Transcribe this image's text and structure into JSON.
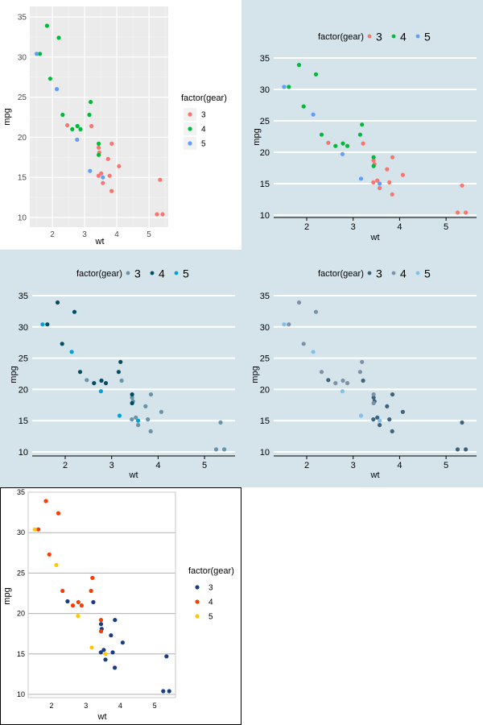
{
  "chart_data": [
    {
      "type": "scatter",
      "theme": "ggplot-gray",
      "xlabel": "wt",
      "ylabel": "mpg",
      "legend_title": "factor(gear)",
      "legend_placement": "right",
      "xticks": [
        2,
        3,
        4,
        5
      ],
      "yticks": [
        10,
        15,
        20,
        25,
        30,
        35
      ],
      "grid": true,
      "colors": {
        "3": "#f8766d",
        "4": "#00ba38",
        "5": "#619cff"
      }
    },
    {
      "type": "scatter",
      "theme": "economist",
      "xlabel": "wt",
      "ylabel": "mpg",
      "legend_title": "factor(gear)",
      "legend_placement": "top",
      "xticks": [
        2,
        3,
        4,
        5
      ],
      "yticks": [
        10,
        15,
        20,
        25,
        30,
        35
      ],
      "grid": true,
      "colors": {
        "3": "#f8766d",
        "4": "#00ba38",
        "5": "#619cff"
      }
    },
    {
      "type": "scatter",
      "theme": "economist",
      "xlabel": "wt",
      "ylabel": "mpg",
      "legend_title": "factor(gear)",
      "legend_placement": "top",
      "xticks": [
        2,
        3,
        4,
        5
      ],
      "yticks": [
        10,
        15,
        20,
        25,
        30,
        35
      ],
      "grid": true,
      "colors": {
        "3": "#6794a7",
        "4": "#014d64",
        "5": "#01a2d9"
      }
    },
    {
      "type": "scatter",
      "theme": "economist",
      "xlabel": "wt",
      "ylabel": "mpg",
      "legend_title": "factor(gear)",
      "legend_placement": "top",
      "xticks": [
        2,
        3,
        4,
        5
      ],
      "yticks": [
        10,
        15,
        20,
        25,
        30,
        35
      ],
      "grid": true,
      "colors": {
        "3": "#3e647d",
        "4": "#7b92a8",
        "5": "#82c0e9"
      }
    },
    {
      "type": "scatter",
      "theme": "stata",
      "xlabel": "wt",
      "ylabel": "mpg",
      "legend_title": "factor(gear)",
      "legend_placement": "right",
      "xticks": [
        2,
        3,
        4,
        5
      ],
      "yticks": [
        10,
        15,
        20,
        25,
        30,
        35
      ],
      "grid": true,
      "colors": {
        "3": "#1a3c80",
        "4": "#ff3c00",
        "5": "#ffc800"
      }
    }
  ],
  "points": [
    [
      2.62,
      21.0,
      4
    ],
    [
      2.875,
      21.0,
      4
    ],
    [
      2.32,
      22.8,
      4
    ],
    [
      3.215,
      21.4,
      3
    ],
    [
      3.44,
      18.7,
      3
    ],
    [
      3.46,
      18.1,
      3
    ],
    [
      3.57,
      14.3,
      3
    ],
    [
      3.19,
      24.4,
      4
    ],
    [
      3.15,
      22.8,
      4
    ],
    [
      3.44,
      19.2,
      4
    ],
    [
      3.44,
      17.8,
      4
    ],
    [
      4.07,
      16.4,
      3
    ],
    [
      3.73,
      17.3,
      3
    ],
    [
      3.78,
      15.2,
      3
    ],
    [
      5.25,
      10.4,
      3
    ],
    [
      5.424,
      10.4,
      3
    ],
    [
      5.345,
      14.7,
      3
    ],
    [
      2.2,
      32.4,
      4
    ],
    [
      1.615,
      30.4,
      4
    ],
    [
      1.835,
      33.9,
      4
    ],
    [
      2.465,
      21.5,
      3
    ],
    [
      3.52,
      15.5,
      3
    ],
    [
      3.435,
      15.2,
      3
    ],
    [
      3.84,
      13.3,
      3
    ],
    [
      3.845,
      19.2,
      3
    ],
    [
      1.935,
      27.3,
      4
    ],
    [
      2.14,
      26.0,
      5
    ],
    [
      1.513,
      30.4,
      5
    ],
    [
      3.17,
      15.8,
      5
    ],
    [
      2.77,
      19.7,
      5
    ],
    [
      3.57,
      15.0,
      5
    ],
    [
      2.78,
      21.4,
      4
    ]
  ],
  "legend_levels": [
    "3",
    "4",
    "5"
  ]
}
